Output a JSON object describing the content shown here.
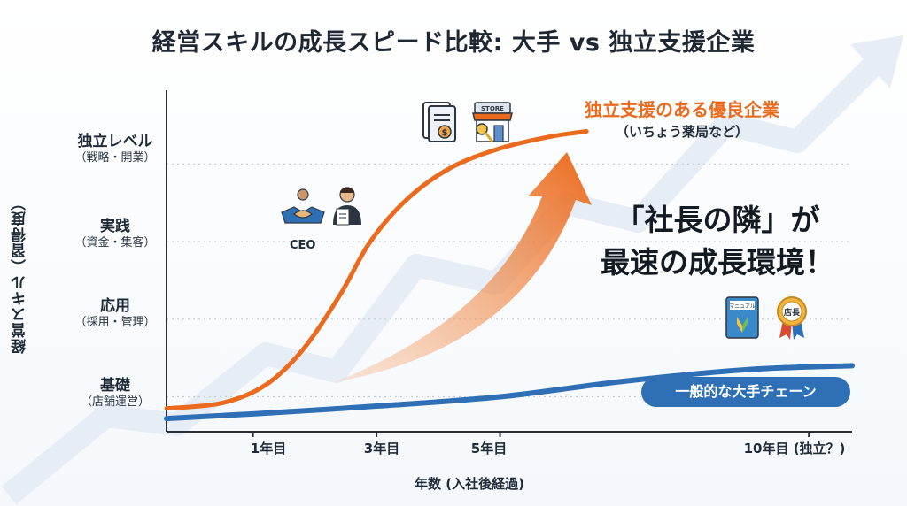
{
  "title": "経営スキルの成長スピード比較: 大手 vs 独立支援企業",
  "chart_data": {
    "type": "line",
    "ylabel": "経営スキル（習得度）",
    "xlabel": "年数 (入社後経過)",
    "y_levels": [
      {
        "label": "基礎",
        "sublabel": "（店舗運営）",
        "value": 1
      },
      {
        "label": "応用",
        "sublabel": "（採用・管理）",
        "value": 2
      },
      {
        "label": "実践",
        "sublabel": "（資金・集客）",
        "value": 3
      },
      {
        "label": "独立レベル",
        "sublabel": "（戦略・開業）",
        "value": 4
      }
    ],
    "x_ticks": [
      {
        "label": "1年目",
        "value": 1
      },
      {
        "label": "3年目",
        "value": 3
      },
      {
        "label": "5年目",
        "value": 5
      },
      {
        "label": "10年目 (独立？)",
        "value": 10
      }
    ],
    "xlim": [
      -0.4,
      10.7
    ],
    "ylim": [
      0.55,
      4.95
    ],
    "grid": true,
    "series": [
      {
        "name": "独立支援のある優良企業",
        "subtitle": "（いちょう薬局など）",
        "color": "#ea6a1e",
        "points": [
          [
            -0.4,
            0.85
          ],
          [
            0.5,
            0.92
          ],
          [
            1.2,
            1.15
          ],
          [
            1.8,
            1.6
          ],
          [
            2.4,
            2.3
          ],
          [
            2.9,
            3.0
          ],
          [
            3.5,
            3.55
          ],
          [
            4.2,
            3.95
          ],
          [
            5.0,
            4.2
          ],
          [
            5.8,
            4.35
          ],
          [
            6.4,
            4.42
          ]
        ]
      },
      {
        "name": "一般的な大手チェーン",
        "color": "#2e6fb6",
        "points": [
          [
            -0.4,
            0.72
          ],
          [
            1.0,
            0.78
          ],
          [
            3.0,
            0.88
          ],
          [
            5.0,
            1.0
          ],
          [
            7.0,
            1.2
          ],
          [
            9.0,
            1.35
          ],
          [
            10.7,
            1.4
          ]
        ]
      }
    ],
    "annotations": [
      {
        "text": "「社長の隣」が",
        "color": "#141a22"
      },
      {
        "text": "最速の成長環境！",
        "color": "#141a22"
      }
    ],
    "ceo_label": "CEO"
  },
  "icons": [
    "document-coin-icon",
    "store-key-icon",
    "handshake-icon",
    "ceo-person-icon",
    "manual-book-icon",
    "manager-badge-icon"
  ],
  "icon_texts": {
    "store": "STORE",
    "manual": "マニュアル",
    "badge": "店長"
  },
  "colors": {
    "orange": "#ea6a1e",
    "blue": "#2e6fb6",
    "axis": "#2a2f36",
    "grid": "#c5ccd4"
  }
}
